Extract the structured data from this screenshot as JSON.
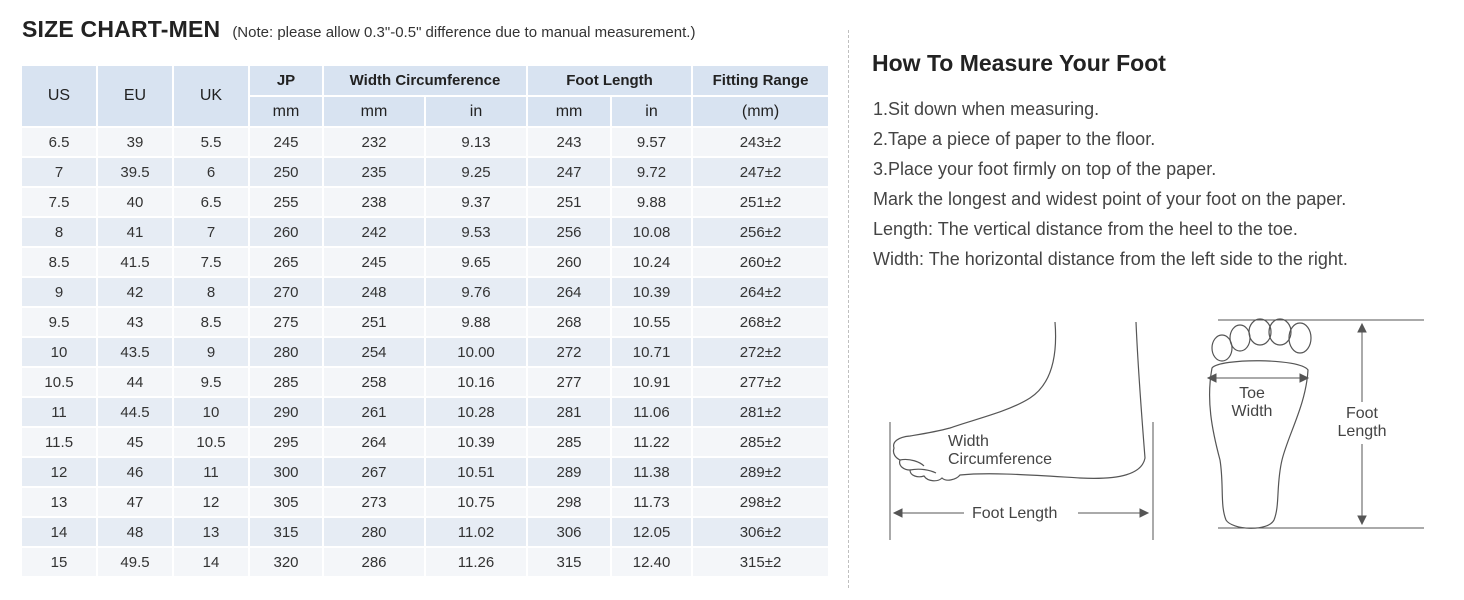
{
  "header": {
    "title": "SIZE CHART-MEN",
    "note": "(Note: please allow 0.3\"-0.5\" difference due to manual measurement.)"
  },
  "table": {
    "col_us": "US",
    "col_eu": "EU",
    "col_uk": "UK",
    "col_jp": "JP",
    "col_width": "Width Circumference",
    "col_foot": "Foot Length",
    "col_fit": "Fitting Range",
    "unit_jp": "mm",
    "unit_width_mm": "mm",
    "unit_width_in": "in",
    "unit_foot_mm": "mm",
    "unit_foot_in": "in",
    "unit_fit": "(mm)",
    "rows": [
      [
        "6.5",
        "39",
        "5.5",
        "245",
        "232",
        "9.13",
        "243",
        "9.57",
        "243±2"
      ],
      [
        "7",
        "39.5",
        "6",
        "250",
        "235",
        "9.25",
        "247",
        "9.72",
        "247±2"
      ],
      [
        "7.5",
        "40",
        "6.5",
        "255",
        "238",
        "9.37",
        "251",
        "9.88",
        "251±2"
      ],
      [
        "8",
        "41",
        "7",
        "260",
        "242",
        "9.53",
        "256",
        "10.08",
        "256±2"
      ],
      [
        "8.5",
        "41.5",
        "7.5",
        "265",
        "245",
        "9.65",
        "260",
        "10.24",
        "260±2"
      ],
      [
        "9",
        "42",
        "8",
        "270",
        "248",
        "9.76",
        "264",
        "10.39",
        "264±2"
      ],
      [
        "9.5",
        "43",
        "8.5",
        "275",
        "251",
        "9.88",
        "268",
        "10.55",
        "268±2"
      ],
      [
        "10",
        "43.5",
        "9",
        "280",
        "254",
        "10.00",
        "272",
        "10.71",
        "272±2"
      ],
      [
        "10.5",
        "44",
        "9.5",
        "285",
        "258",
        "10.16",
        "277",
        "10.91",
        "277±2"
      ],
      [
        "11",
        "44.5",
        "10",
        "290",
        "261",
        "10.28",
        "281",
        "11.06",
        "281±2"
      ],
      [
        "11.5",
        "45",
        "10.5",
        "295",
        "264",
        "10.39",
        "285",
        "11.22",
        "285±2"
      ],
      [
        "12",
        "46",
        "11",
        "300",
        "267",
        "10.51",
        "289",
        "11.38",
        "289±2"
      ],
      [
        "13",
        "47",
        "12",
        "305",
        "273",
        "10.75",
        "298",
        "11.73",
        "298±2"
      ],
      [
        "14",
        "48",
        "13",
        "315",
        "280",
        "11.02",
        "306",
        "12.05",
        "306±2"
      ],
      [
        "15",
        "49.5",
        "14",
        "320",
        "286",
        "11.26",
        "315",
        "12.40",
        "315±2"
      ]
    ]
  },
  "howto": {
    "title": "How To Measure Your Foot",
    "steps": [
      "1.Sit down when measuring.",
      "2.Tape a piece of paper to the floor.",
      "3.Place your foot firmly on top of the paper.",
      "Mark the longest and widest point of your foot on the paper.",
      "Length: The vertical distance from the heel to the toe.",
      "Width: The horizontal distance from the left side to the right."
    ]
  },
  "illustration": {
    "side_width_line1": "Width",
    "side_width_line2": "Circumference",
    "side_length": "Foot Length",
    "sole_toe_line1": "Toe",
    "sole_toe_line2": "Width",
    "sole_length_line1": "Foot",
    "sole_length_line2": "Length"
  },
  "colors": {
    "header_bg": "#d8e3f1",
    "row_light": "#f4f6f9",
    "row_dark": "#e6ecf4"
  }
}
